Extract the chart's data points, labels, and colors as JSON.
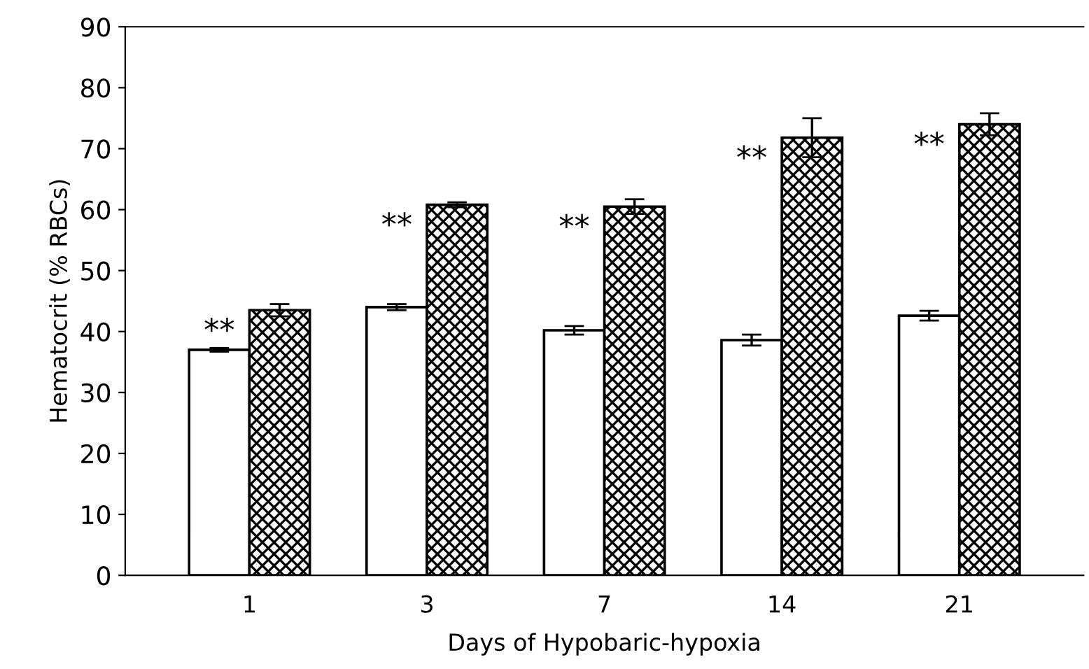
{
  "chart_data": {
    "type": "bar",
    "xlabel": "Days of Hypobaric-hypoxia",
    "ylabel": "Hematocrit (% RBCs)",
    "categories": [
      "1",
      "3",
      "7",
      "14",
      "21"
    ],
    "series": [
      {
        "color": "#ffffff",
        "values": [
          37.0,
          44.0,
          40.2,
          38.6,
          42.6
        ],
        "errors": [
          0.3,
          0.5,
          0.7,
          0.9,
          0.8
        ]
      },
      {
        "color": "#000000",
        "values": [
          43.5,
          60.8,
          60.5,
          71.8,
          74.0
        ],
        "errors": [
          1.0,
          0.4,
          1.2,
          3.2,
          1.8
        ]
      }
    ],
    "annotations": [
      "**",
      "**",
      "**",
      "**",
      "**"
    ],
    "ylim": [
      0,
      90
    ],
    "yticks": [
      0,
      10,
      20,
      30,
      40,
      50,
      60,
      70,
      80,
      90
    ],
    "grid": false,
    "legend": false
  }
}
